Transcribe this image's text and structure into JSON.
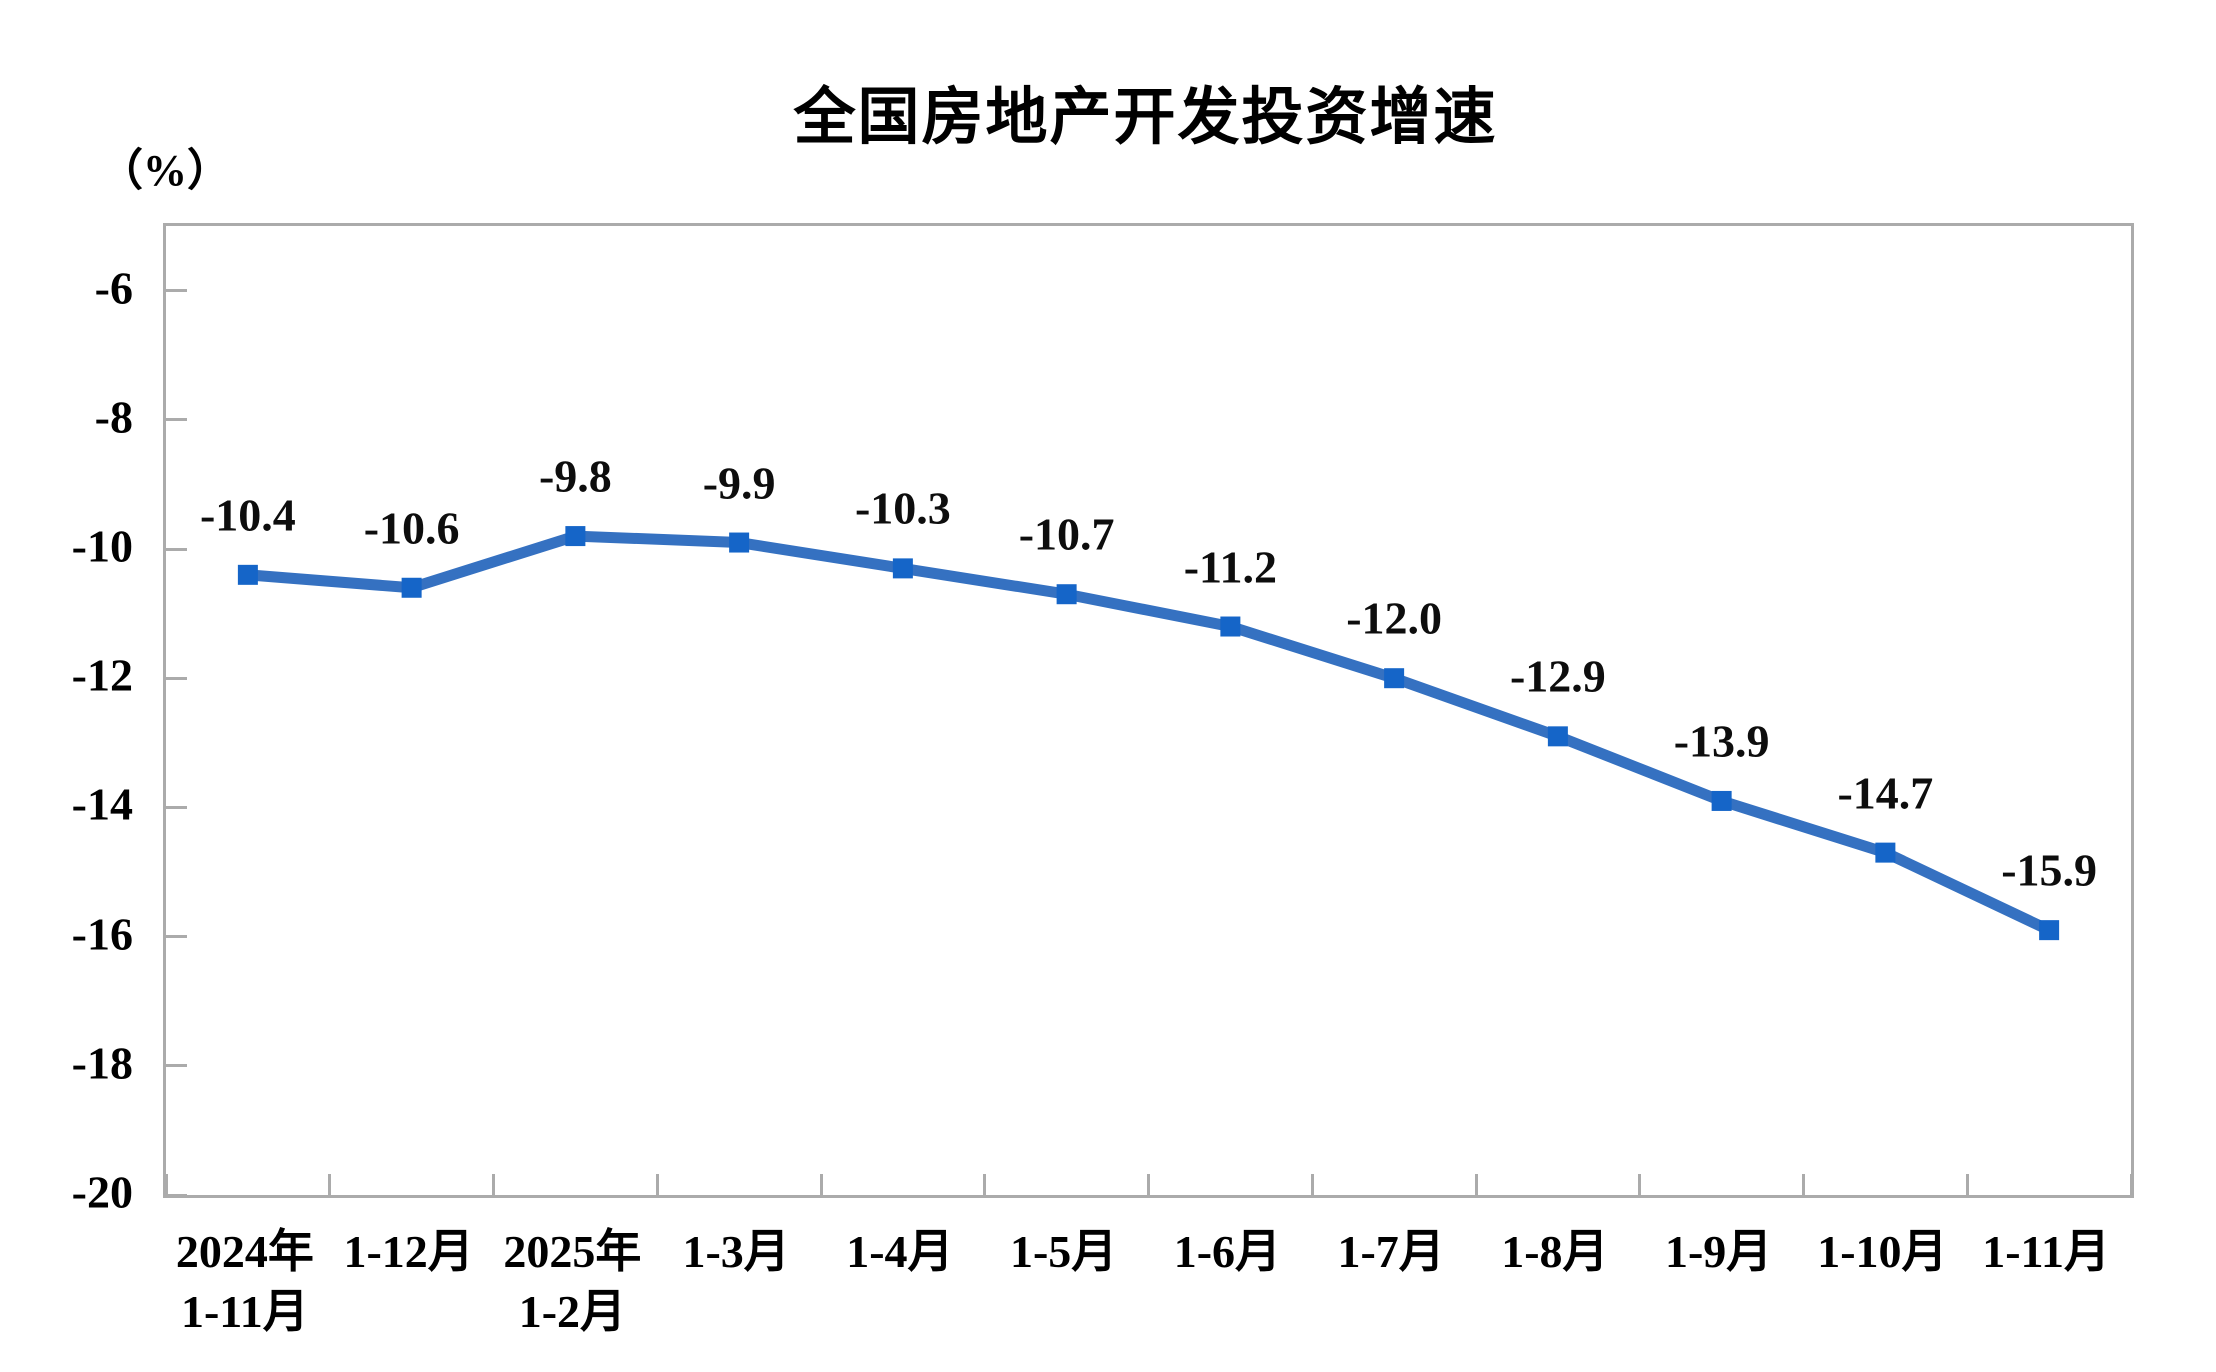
{
  "chart_data": {
    "type": "line",
    "title": "全国房地产开发投资增速",
    "unit_label": "（%）",
    "grid": false,
    "legend_position": "none",
    "categories": [
      {
        "line1": "2024年",
        "line2": "1-11月"
      },
      {
        "line1": "1-12月",
        "line2": ""
      },
      {
        "line1": "2025年",
        "line2": "1-2月"
      },
      {
        "line1": "1-3月",
        "line2": ""
      },
      {
        "line1": "1-4月",
        "line2": ""
      },
      {
        "line1": "1-5月",
        "line2": ""
      },
      {
        "line1": "1-6月",
        "line2": ""
      },
      {
        "line1": "1-7月",
        "line2": ""
      },
      {
        "line1": "1-8月",
        "line2": ""
      },
      {
        "line1": "1-9月",
        "line2": ""
      },
      {
        "line1": "1-10月",
        "line2": ""
      },
      {
        "line1": "1-11月",
        "line2": ""
      }
    ],
    "series": [
      {
        "name": "全国房地产开发投资增速",
        "values": [
          -10.4,
          -10.6,
          -9.8,
          -9.9,
          -10.3,
          -10.7,
          -11.2,
          -12.0,
          -12.9,
          -13.9,
          -14.7,
          -15.9
        ],
        "point_labels": [
          "-10.4",
          "-10.6",
          "-9.8",
          "-9.9",
          "-10.3",
          "-10.7",
          "-11.2",
          "-12.0",
          "-12.9",
          "-13.9",
          "-14.7",
          "-15.9"
        ]
      }
    ],
    "y_axis": {
      "min": -20,
      "max": -5,
      "tick_values": [
        -6,
        -8,
        -10,
        -12,
        -14,
        -16,
        -18,
        -20
      ],
      "tick_labels": [
        "-6",
        "-8",
        "-10",
        "-12",
        "-14",
        "-16",
        "-18",
        "-20"
      ]
    },
    "colors": {
      "line": "#3571C1",
      "marker": "#1565C8",
      "axis": "#ABABAB",
      "text": "#000000"
    }
  }
}
